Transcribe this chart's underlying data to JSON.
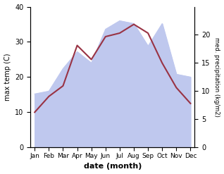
{
  "months": [
    "Jan",
    "Feb",
    "Mar",
    "Apr",
    "May",
    "Jun",
    "Jul",
    "Aug",
    "Sep",
    "Oct",
    "Nov",
    "Dec"
  ],
  "month_positions": [
    0,
    1,
    2,
    3,
    4,
    5,
    6,
    7,
    8,
    9,
    10,
    11
  ],
  "temperature": [
    10.0,
    14.5,
    17.5,
    29.0,
    25.0,
    31.5,
    32.5,
    35.0,
    32.5,
    24.0,
    17.0,
    12.5
  ],
  "precipitation": [
    9.5,
    10.0,
    14.0,
    17.0,
    15.0,
    21.0,
    22.5,
    22.0,
    18.0,
    22.0,
    13.0,
    12.5
  ],
  "temp_ylim": [
    0,
    40
  ],
  "precip_ylim": [
    0,
    25
  ],
  "precip_color_fill": "#bfc8ee",
  "temp_color": "#993344",
  "xlabel": "date (month)",
  "ylabel_left": "max temp (C)",
  "ylabel_right": "med. precipitation (kg/m2)",
  "temp_yticks": [
    0,
    10,
    20,
    30,
    40
  ],
  "precip_yticks": [
    0,
    5,
    10,
    15,
    20
  ],
  "figsize": [
    3.18,
    2.47
  ],
  "dpi": 100
}
